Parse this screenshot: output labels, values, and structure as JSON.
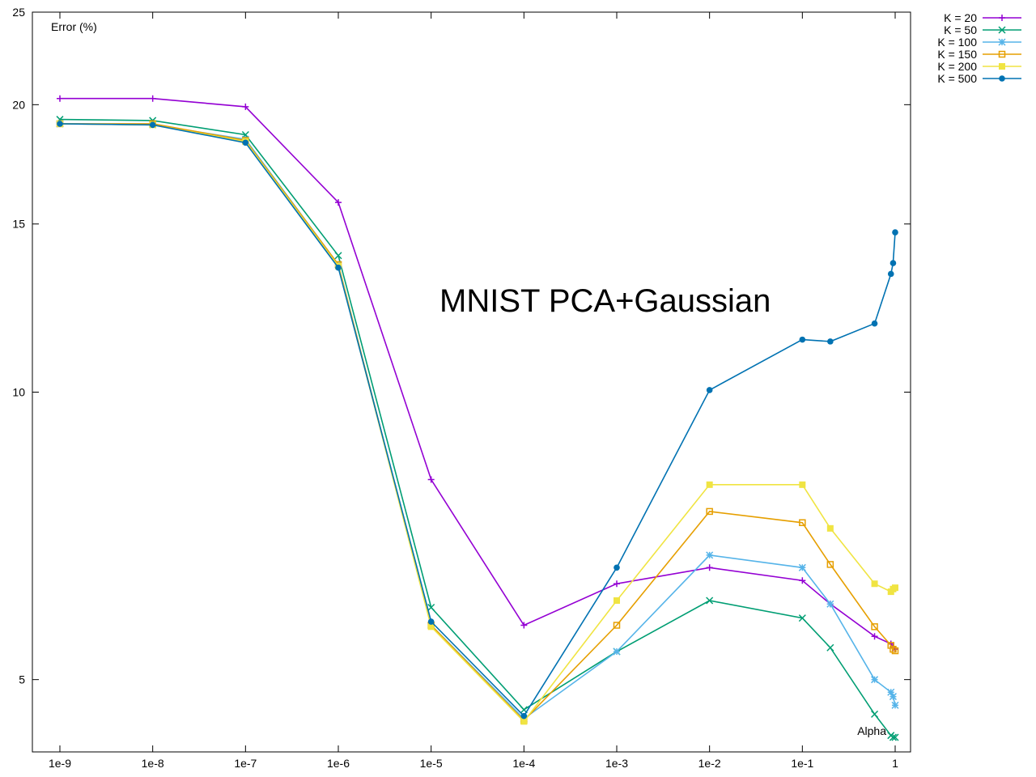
{
  "chart_data": {
    "type": "line",
    "title": "MNIST PCA+Gaussian",
    "xlabel": "Alpha",
    "ylabel": "Error (%)",
    "x_scale": "log",
    "y_scale": "log",
    "ylim": [
      4.2,
      25
    ],
    "xlim": [
      1e-09,
      1
    ],
    "grid": false,
    "legend_position": "outside-top-right",
    "x_ticks": [
      {
        "value": 1e-09,
        "label": "1e-9"
      },
      {
        "value": 1e-08,
        "label": "1e-8"
      },
      {
        "value": 1e-07,
        "label": "1e-7"
      },
      {
        "value": 1e-06,
        "label": "1e-6"
      },
      {
        "value": 1e-05,
        "label": "1e-5"
      },
      {
        "value": 0.0001,
        "label": "1e-4"
      },
      {
        "value": 0.001,
        "label": "1e-3"
      },
      {
        "value": 0.01,
        "label": "1e-2"
      },
      {
        "value": 0.1,
        "label": "1e-1"
      },
      {
        "value": 1,
        "label": "1"
      }
    ],
    "y_ticks": [
      {
        "value": 5,
        "label": "5"
      },
      {
        "value": 10,
        "label": "10"
      },
      {
        "value": 15,
        "label": "15"
      },
      {
        "value": 20,
        "label": "20"
      },
      {
        "value": 25,
        "label": "25"
      }
    ],
    "series": [
      {
        "name": "K = 20",
        "color": "#9400d3",
        "marker": "plus",
        "points": [
          [
            1e-09,
            20.3
          ],
          [
            1e-08,
            20.3
          ],
          [
            1e-07,
            19.9
          ],
          [
            1e-06,
            15.8
          ],
          [
            1e-05,
            8.1
          ],
          [
            0.0001,
            5.7
          ],
          [
            0.001,
            6.3
          ],
          [
            0.01,
            6.55
          ],
          [
            0.1,
            6.35
          ],
          [
            0.2,
            6.0
          ],
          [
            0.6,
            5.55
          ],
          [
            0.9,
            5.45
          ],
          [
            0.95,
            5.4
          ],
          [
            1,
            5.38
          ]
        ]
      },
      {
        "name": "K = 50",
        "color": "#009e73",
        "marker": "x",
        "points": [
          [
            1e-09,
            19.3
          ],
          [
            1e-08,
            19.25
          ],
          [
            1e-07,
            18.6
          ],
          [
            1e-06,
            13.9
          ],
          [
            1e-05,
            5.95
          ],
          [
            0.0001,
            4.65
          ],
          [
            0.001,
            5.35
          ],
          [
            0.01,
            6.05
          ],
          [
            0.1,
            5.8
          ],
          [
            0.2,
            5.4
          ],
          [
            0.6,
            4.6
          ],
          [
            0.9,
            4.37
          ],
          [
            0.95,
            4.35
          ],
          [
            1,
            4.35
          ]
        ]
      },
      {
        "name": "K = 100",
        "color": "#56b4e9",
        "marker": "star",
        "points": [
          [
            1e-09,
            19.1
          ],
          [
            1e-08,
            19.05
          ],
          [
            1e-07,
            18.4
          ],
          [
            1e-06,
            13.6
          ],
          [
            1e-05,
            5.7
          ],
          [
            0.0001,
            4.55
          ],
          [
            0.001,
            5.35
          ],
          [
            0.01,
            6.75
          ],
          [
            0.1,
            6.55
          ],
          [
            0.2,
            6.0
          ],
          [
            0.6,
            5.0
          ],
          [
            0.9,
            4.85
          ],
          [
            0.95,
            4.8
          ],
          [
            1,
            4.7
          ]
        ]
      },
      {
        "name": "K = 150",
        "color": "#e69f00",
        "marker": "square-open",
        "points": [
          [
            1e-09,
            19.1
          ],
          [
            1e-08,
            19.1
          ],
          [
            1e-07,
            18.35
          ],
          [
            1e-06,
            13.6
          ],
          [
            1e-05,
            5.7
          ],
          [
            0.0001,
            4.53
          ],
          [
            0.001,
            5.7
          ],
          [
            0.01,
            7.5
          ],
          [
            0.1,
            7.3
          ],
          [
            0.2,
            6.6
          ],
          [
            0.6,
            5.68
          ],
          [
            0.9,
            5.43
          ],
          [
            0.95,
            5.38
          ],
          [
            1,
            5.36
          ]
        ]
      },
      {
        "name": "K = 200",
        "color": "#f0e442",
        "marker": "square-filled",
        "points": [
          [
            1e-09,
            19.1
          ],
          [
            1e-08,
            19.05
          ],
          [
            1e-07,
            18.3
          ],
          [
            1e-06,
            13.55
          ],
          [
            1e-05,
            5.68
          ],
          [
            0.0001,
            4.52
          ],
          [
            0.001,
            6.05
          ],
          [
            0.01,
            8.0
          ],
          [
            0.1,
            8.0
          ],
          [
            0.2,
            7.2
          ],
          [
            0.6,
            6.3
          ],
          [
            0.9,
            6.18
          ],
          [
            0.95,
            6.22
          ],
          [
            1,
            6.24
          ]
        ]
      },
      {
        "name": "K = 500",
        "color": "#0072b2",
        "marker": "circle-filled",
        "points": [
          [
            1e-09,
            19.1
          ],
          [
            1e-08,
            19.05
          ],
          [
            1e-07,
            18.25
          ],
          [
            1e-06,
            13.5
          ],
          [
            1e-05,
            5.75
          ],
          [
            0.0001,
            4.58
          ],
          [
            0.001,
            6.55
          ],
          [
            0.01,
            10.05
          ],
          [
            0.1,
            11.35
          ],
          [
            0.2,
            11.3
          ],
          [
            0.6,
            11.8
          ],
          [
            0.9,
            13.3
          ],
          [
            0.95,
            13.65
          ],
          [
            1,
            14.7
          ]
        ]
      }
    ]
  }
}
